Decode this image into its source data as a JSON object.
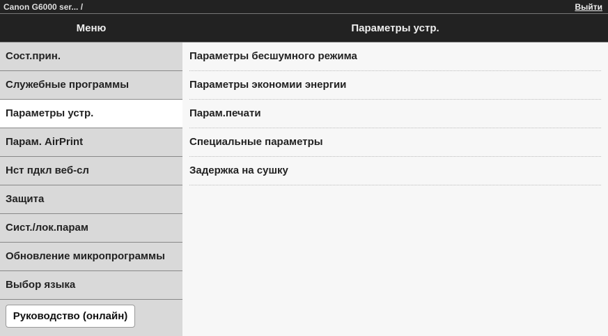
{
  "topbar": {
    "title": "Canon G6000 ser... /",
    "logout": "Выйти"
  },
  "sidebar": {
    "header": "Меню",
    "items": [
      {
        "label": "Сост.прин."
      },
      {
        "label": "Служебные программы"
      },
      {
        "label": "Параметры устр.",
        "active": true
      },
      {
        "label": "Парам. AirPrint"
      },
      {
        "label": "Нст пдкл веб-сл"
      },
      {
        "label": "Защита"
      },
      {
        "label": "Сист./лок.парам"
      },
      {
        "label": "Обновление микропрограммы"
      },
      {
        "label": "Выбор языка"
      }
    ],
    "manual_button": "Руководство (онлайн)"
  },
  "main": {
    "header": "Параметры устр.",
    "items": [
      {
        "label": "Параметры бесшумного режима"
      },
      {
        "label": "Параметры экономии энергии"
      },
      {
        "label": "Парам.печати"
      },
      {
        "label": "Специальные параметры"
      },
      {
        "label": "Задержка на сушку"
      }
    ]
  }
}
